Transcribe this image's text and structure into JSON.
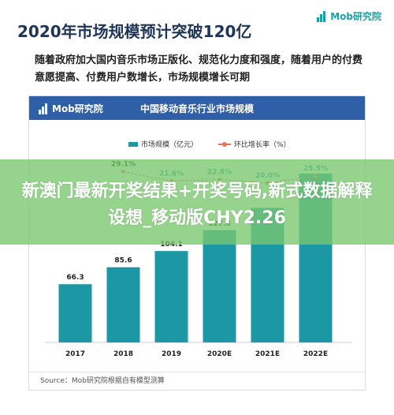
{
  "brand": {
    "name": "Mob研究院",
    "color": "#1fa0a6"
  },
  "header": {
    "title": "2020年市场规模预计突破120亿",
    "description": "随着政府加大国内音乐市场正版化、规范化力度和强度，随着用户的付费意愿提高、付费用户数增长，市场规模增长可期"
  },
  "card": {
    "brand": "Mob研究院",
    "title": "中国移动音乐行业市场规模",
    "source": "Source：Mob研究院根据自有模型测算"
  },
  "legend": {
    "bars": "市场规模（亿元）",
    "line": "环比增长率（%）"
  },
  "overlay": {
    "text": "新澳门最新开奖结果+开奖号码,新式数据解释设想_移动版CHY2.26"
  },
  "colors": {
    "bar": "#1b98a3",
    "line": "#e8735a",
    "header_bg": "#2f5fa7",
    "overlay": "#78c86e"
  },
  "chart_data": {
    "type": "bar",
    "title": "中国移动音乐行业市场规模",
    "categories": [
      "2017",
      "2018",
      "2019",
      "2020E",
      "2021E",
      "2022E"
    ],
    "series": [
      {
        "name": "市场规模（亿元）",
        "type": "bar",
        "values": [
          66.3,
          85.6,
          104.1,
          127.8,
          153.2,
          192.3
        ],
        "value_labels": [
          "66.3",
          "85.6",
          "104.1",
          "127.8",
          "",
          ""
        ]
      },
      {
        "name": "环比增长率（%）",
        "type": "line",
        "values": [
          null,
          29.1,
          21.6,
          22.8,
          20.0,
          25.5
        ],
        "value_labels": [
          "",
          "29.1%",
          "21.6%",
          "22.8%",
          "20.0%",
          "25.5%"
        ]
      }
    ],
    "ylim": [
      0,
      200
    ],
    "grid": false,
    "legend": "top"
  }
}
